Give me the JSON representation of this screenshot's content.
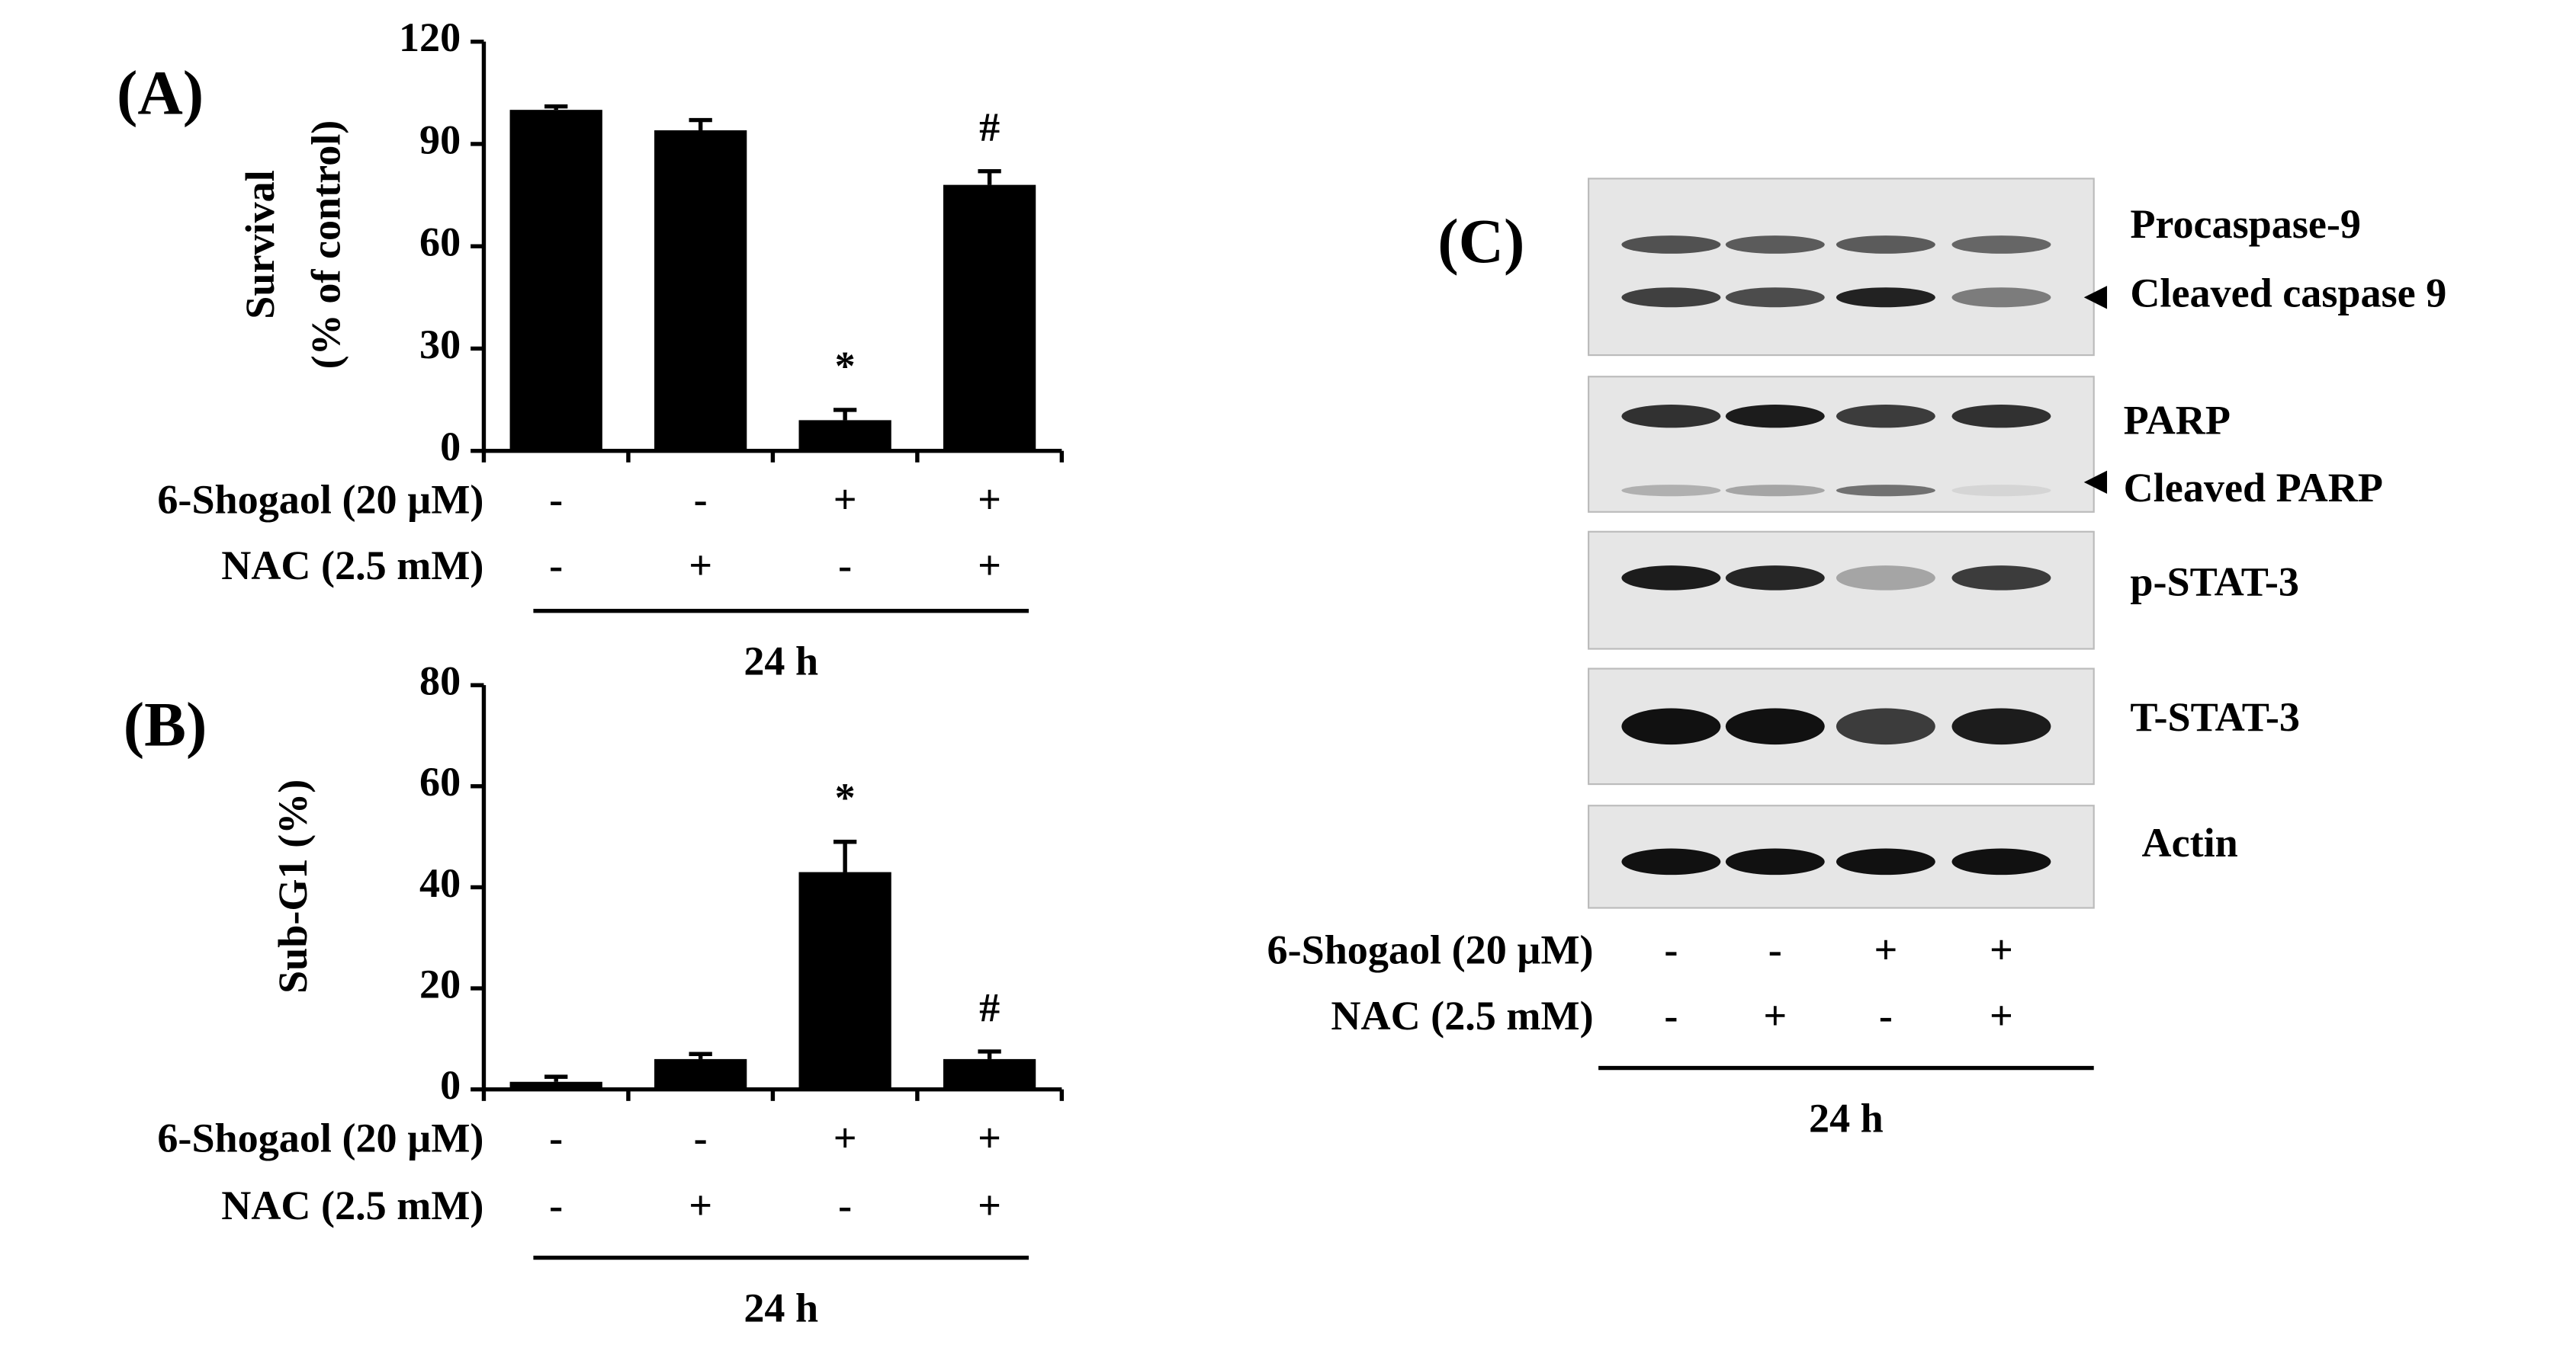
{
  "chart_data": [
    {
      "type": "bar",
      "panel_label": "(A)",
      "ylabel": [
        "Survival",
        "(% of control)"
      ],
      "values": [
        100,
        94,
        9,
        78
      ],
      "errors": [
        1,
        3,
        3,
        4
      ],
      "annotations": [
        null,
        null,
        "*",
        "#"
      ],
      "color": "#000000",
      "ylim": [
        0,
        120
      ],
      "yticks": [
        0,
        30,
        60,
        90,
        120
      ],
      "treatments": [
        {
          "label": "6-Shogaol (20 µM)",
          "values": [
            "-",
            "-",
            "+",
            "+"
          ]
        },
        {
          "label": "NAC (2.5 mM)",
          "values": [
            "-",
            "+",
            "-",
            "+"
          ]
        }
      ],
      "time": "24 h"
    },
    {
      "type": "bar",
      "panel_label": "(B)",
      "ylabel": [
        "Sub-G1 (%)"
      ],
      "values": [
        1.5,
        6,
        43,
        6
      ],
      "errors": [
        1,
        1,
        6,
        1.5
      ],
      "annotations": [
        null,
        null,
        "*",
        "#"
      ],
      "color": "#000000",
      "ylim": [
        0,
        80
      ],
      "yticks": [
        0,
        20,
        40,
        60,
        80
      ],
      "treatments": [
        {
          "label": "6-Shogaol (20 µM)",
          "values": [
            "-",
            "-",
            "+",
            "+"
          ]
        },
        {
          "label": "NAC (2.5 mM)",
          "values": [
            "-",
            "+",
            "-",
            "+"
          ]
        }
      ],
      "time": "24 h"
    }
  ],
  "blot": {
    "panel_label": "(C)",
    "bands": [
      "Procaspase-9",
      "Cleaved caspase 9",
      "PARP",
      "Cleaved PARP",
      "p-STAT-3",
      "T-STAT-3",
      "Actin"
    ],
    "treatments": [
      {
        "label": "6-Shogaol (20 µM)",
        "values": [
          "-",
          "-",
          "+",
          "+"
        ]
      },
      {
        "label": "NAC (2.5 mM)",
        "values": [
          "-",
          "+",
          "-",
          "+"
        ]
      }
    ],
    "time": "24 h"
  }
}
